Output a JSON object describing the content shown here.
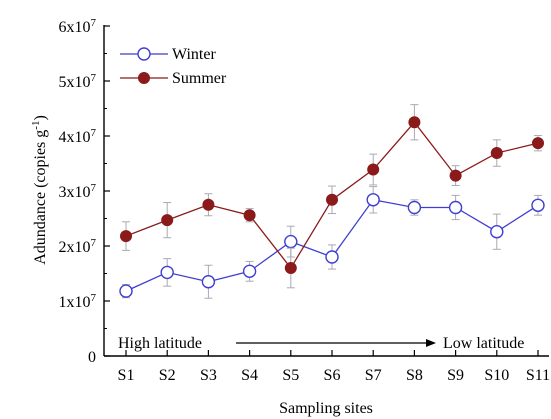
{
  "chart_data": {
    "type": "line",
    "xlabel": "Sampling sites",
    "ylabel": "Adundance (copies g",
    "ylabel_sup": "-1",
    "ylabel_close": ")",
    "categories": [
      "S1",
      "S2",
      "S3",
      "S4",
      "S5",
      "S6",
      "S7",
      "S8",
      "S9",
      "S10",
      "S11"
    ],
    "ylim": [
      0,
      6
    ],
    "y_ticks": [
      {
        "value": 0,
        "mant": "0",
        "exp": ""
      },
      {
        "value": 1,
        "mant": "1x10",
        "exp": "7"
      },
      {
        "value": 2,
        "mant": "2x10",
        "exp": "7"
      },
      {
        "value": 3,
        "mant": "3x10",
        "exp": "7"
      },
      {
        "value": 4,
        "mant": "4x10",
        "exp": "7"
      },
      {
        "value": 5,
        "mant": "5x10",
        "exp": "7"
      },
      {
        "value": 6,
        "mant": "6x10",
        "exp": "7"
      }
    ],
    "y_unit_multiplier": 10000000,
    "legend_position": "top-left",
    "series": [
      {
        "name": "Winter",
        "color": "#3f3fd0",
        "marker": "open-circle",
        "values": [
          1.18,
          1.52,
          1.35,
          1.54,
          2.08,
          1.8,
          2.84,
          2.7,
          2.7,
          2.26,
          2.74
        ],
        "errors": [
          0.12,
          0.25,
          0.3,
          0.18,
          0.28,
          0.22,
          0.24,
          0.14,
          0.22,
          0.32,
          0.18
        ]
      },
      {
        "name": "Summer",
        "color": "#8b1a1a",
        "marker": "filled-circle",
        "values": [
          2.18,
          2.47,
          2.75,
          2.56,
          1.6,
          2.84,
          3.39,
          4.25,
          3.28,
          3.69,
          3.87
        ],
        "errors": [
          0.26,
          0.32,
          0.2,
          0.12,
          0.36,
          0.25,
          0.28,
          0.32,
          0.18,
          0.24,
          0.14
        ]
      }
    ],
    "annotations": {
      "left": "High latitude",
      "right": "Low latitude"
    }
  }
}
